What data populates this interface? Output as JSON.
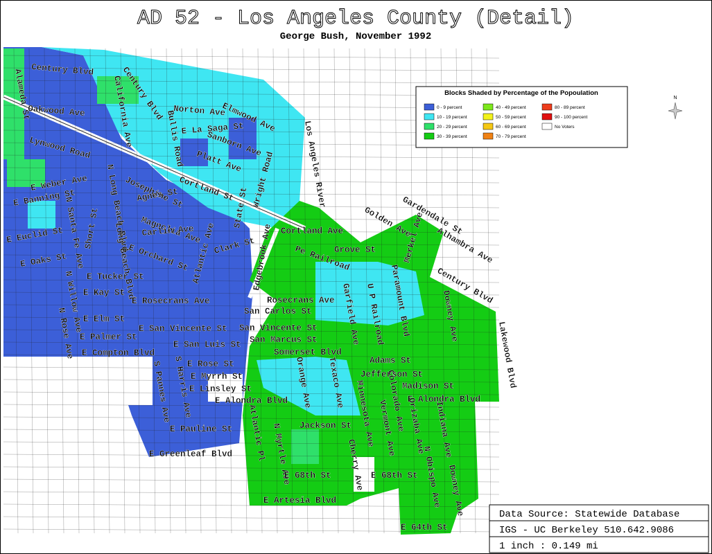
{
  "title": "AD 52 - Los Angeles County (Detail)",
  "subtitle": "George Bush, November 1992",
  "legend": {
    "title": "Blocks Shaded by Percentage of the Popoulation",
    "items": [
      {
        "label": "0 - 9 percent",
        "color": "#3c5fd8"
      },
      {
        "label": "10 - 19 percent",
        "color": "#3fe6f2"
      },
      {
        "label": "20 - 29 percent",
        "color": "#2fe06a"
      },
      {
        "label": "30 - 39 percent",
        "color": "#14cc14"
      },
      {
        "label": "40 - 49 percent",
        "color": "#7de81c"
      },
      {
        "label": "50 - 59 percent",
        "color": "#f2f21a"
      },
      {
        "label": "60 - 69 percent",
        "color": "#f5c814"
      },
      {
        "label": "70 - 79 percent",
        "color": "#f08214"
      },
      {
        "label": "80 - 89 percent",
        "color": "#ee3c1c"
      },
      {
        "label": "90 - 100 percent",
        "color": "#e01010"
      },
      {
        "label": "No Voters",
        "color": "#ffffff"
      }
    ]
  },
  "north": "N",
  "streets": [
    "Century Blvd",
    "Alameda St",
    "Oakwood Ave",
    "Norton Ave",
    "California Ave",
    "Century Blvd",
    "Bullis Road",
    "E La Saga St",
    "Elmwood Ave",
    "Sanborn Ave",
    "Lynwood Road",
    "Platt Ave",
    "N Long Beach Blvd",
    "Wright Road",
    "E Weber Ave",
    "Josephine St",
    "Cortland St",
    "E Banning St",
    "N Santa Fe Ave",
    "Agnes St",
    "Los Angeles River",
    "State St",
    "E Euclid St",
    "Magnolia Ave",
    "Carlin Ave",
    "Short St",
    "Atlantic Ave",
    "Long Beach Blvd",
    "Clark St",
    "Edgebrook Ave",
    "Cortland Ave",
    "E Orchard St",
    "E Oaks St",
    "Pe Railroad",
    "Grove St",
    "Gardendale St",
    "Golden Ave",
    "Alhambra Ave",
    "Merkel Ave",
    "N Willow Ave",
    "E Tucker St",
    "Paramount Blvd",
    "Century Blvd",
    "E Kay St",
    "E Rosecrans Ave",
    "Rosecrans Ave",
    "Garfield Ave",
    "U P Railroad",
    "Downey Ave",
    "San Carlos St",
    "N Rose Ave",
    "E Elm St",
    "E San Vincente St",
    "San Vincente St",
    "Lakewood Blvd",
    "E Palmer St",
    "San Marcus St",
    "E San Luis St",
    "E Compton Blvd",
    "Somerset Blvd",
    "Adams St",
    "E Rose St",
    "S Pannes Ave",
    "S Harris Ave",
    "Orange Ave",
    "Texaco Ave",
    "Jefferson St",
    "E Myrrh St",
    "Madison St",
    "E Linsley St",
    "Colorado Ave",
    "E Alondra Blvd",
    "Minnesota Ave",
    "E Alondra Blvd",
    "Atlantic Pl",
    "Jackson St",
    "Orizaba Ave",
    "Indiana Ave",
    "E Pauline St",
    "N Myrtle Ave",
    "Vermont Ave",
    "Cherry Ave",
    "E Greenleaf Blvd",
    "N Obispo Ave",
    "Downey Ave",
    "E 68th St",
    "E 68th St",
    "E Artesia Blvd",
    "E 64th St"
  ],
  "source": [
    "Data Source: Statewide Database",
    "IGS - UC Berkeley 510.642.9086",
    "1 inch : 0.149 mi"
  ]
}
